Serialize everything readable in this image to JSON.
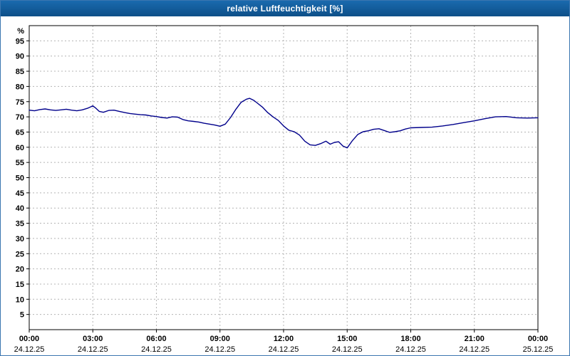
{
  "window": {
    "title": "relative Luftfeuchtigkeit [%]"
  },
  "colors": {
    "titlebar": "#0f5795",
    "window_border": "#3b76b0",
    "grid": "#b4b4b4",
    "axis": "#000000",
    "line": "#00008b",
    "plot_background": "#ffffff"
  },
  "chart_data": {
    "type": "line",
    "title": "relative Luftfeuchtigkeit [%]",
    "xlabel": "",
    "ylabel": "%",
    "ylim": [
      0,
      100
    ],
    "ytick_min": 5,
    "ytick_max": 95,
    "ytick_step": 5,
    "xlim": [
      0,
      24
    ],
    "grid": true,
    "legend": "none",
    "xticks": [
      {
        "hour": 0,
        "time": "00:00",
        "date": "24.12.25"
      },
      {
        "hour": 3,
        "time": "03:00",
        "date": "24.12.25"
      },
      {
        "hour": 6,
        "time": "06:00",
        "date": "24.12.25"
      },
      {
        "hour": 9,
        "time": "09:00",
        "date": "24.12.25"
      },
      {
        "hour": 12,
        "time": "12:00",
        "date": "24.12.25"
      },
      {
        "hour": 15,
        "time": "15:00",
        "date": "24.12.25"
      },
      {
        "hour": 18,
        "time": "18:00",
        "date": "24.12.25"
      },
      {
        "hour": 21,
        "time": "21:00",
        "date": "24.12.25"
      },
      {
        "hour": 24,
        "time": "00:00",
        "date": "25.12.25"
      }
    ],
    "series": [
      {
        "name": "relative Luftfeuchtigkeit",
        "color": "#00008b",
        "x": [
          0,
          0.25,
          0.5,
          0.75,
          1,
          1.25,
          1.5,
          1.75,
          2,
          2.25,
          2.5,
          2.75,
          3,
          3.15,
          3.3,
          3.5,
          3.75,
          4,
          4.25,
          4.5,
          4.75,
          5,
          5.25,
          5.5,
          5.75,
          6,
          6.25,
          6.5,
          6.75,
          7,
          7.25,
          7.5,
          7.75,
          8,
          8.25,
          8.5,
          8.75,
          9,
          9.25,
          9.5,
          9.75,
          10,
          10.25,
          10.4,
          10.6,
          10.75,
          11,
          11.25,
          11.5,
          11.75,
          12,
          12.25,
          12.5,
          12.75,
          13,
          13.25,
          13.5,
          13.75,
          14,
          14.2,
          14.4,
          14.6,
          14.8,
          15,
          15.25,
          15.5,
          15.75,
          16,
          16.25,
          16.5,
          16.75,
          17,
          17.25,
          17.5,
          17.75,
          18,
          18.5,
          19,
          19.5,
          20,
          20.5,
          21,
          21.5,
          22,
          22.5,
          23,
          23.5,
          24
        ],
        "values": [
          72.2,
          72.0,
          72.4,
          72.6,
          72.3,
          72.1,
          72.3,
          72.5,
          72.2,
          72.0,
          72.3,
          72.8,
          73.6,
          72.8,
          71.8,
          71.5,
          72.1,
          72.2,
          71.8,
          71.4,
          71.1,
          70.9,
          70.7,
          70.6,
          70.3,
          70.1,
          69.8,
          69.6,
          70.0,
          69.9,
          69.1,
          68.7,
          68.5,
          68.3,
          67.9,
          67.6,
          67.3,
          66.9,
          67.6,
          69.8,
          72.5,
          74.8,
          75.8,
          76.1,
          75.4,
          74.6,
          73.2,
          71.4,
          70.0,
          68.8,
          67.0,
          65.6,
          65.1,
          64.0,
          62.0,
          60.8,
          60.6,
          61.2,
          62.0,
          61.0,
          61.6,
          61.8,
          60.4,
          59.8,
          62.2,
          64.2,
          65.1,
          65.4,
          65.9,
          66.1,
          65.5,
          64.9,
          65.1,
          65.4,
          66.0,
          66.4,
          66.5,
          66.6,
          67.0,
          67.5,
          68.1,
          68.7,
          69.4,
          70.0,
          70.1,
          69.7,
          69.6,
          69.7
        ]
      }
    ]
  }
}
